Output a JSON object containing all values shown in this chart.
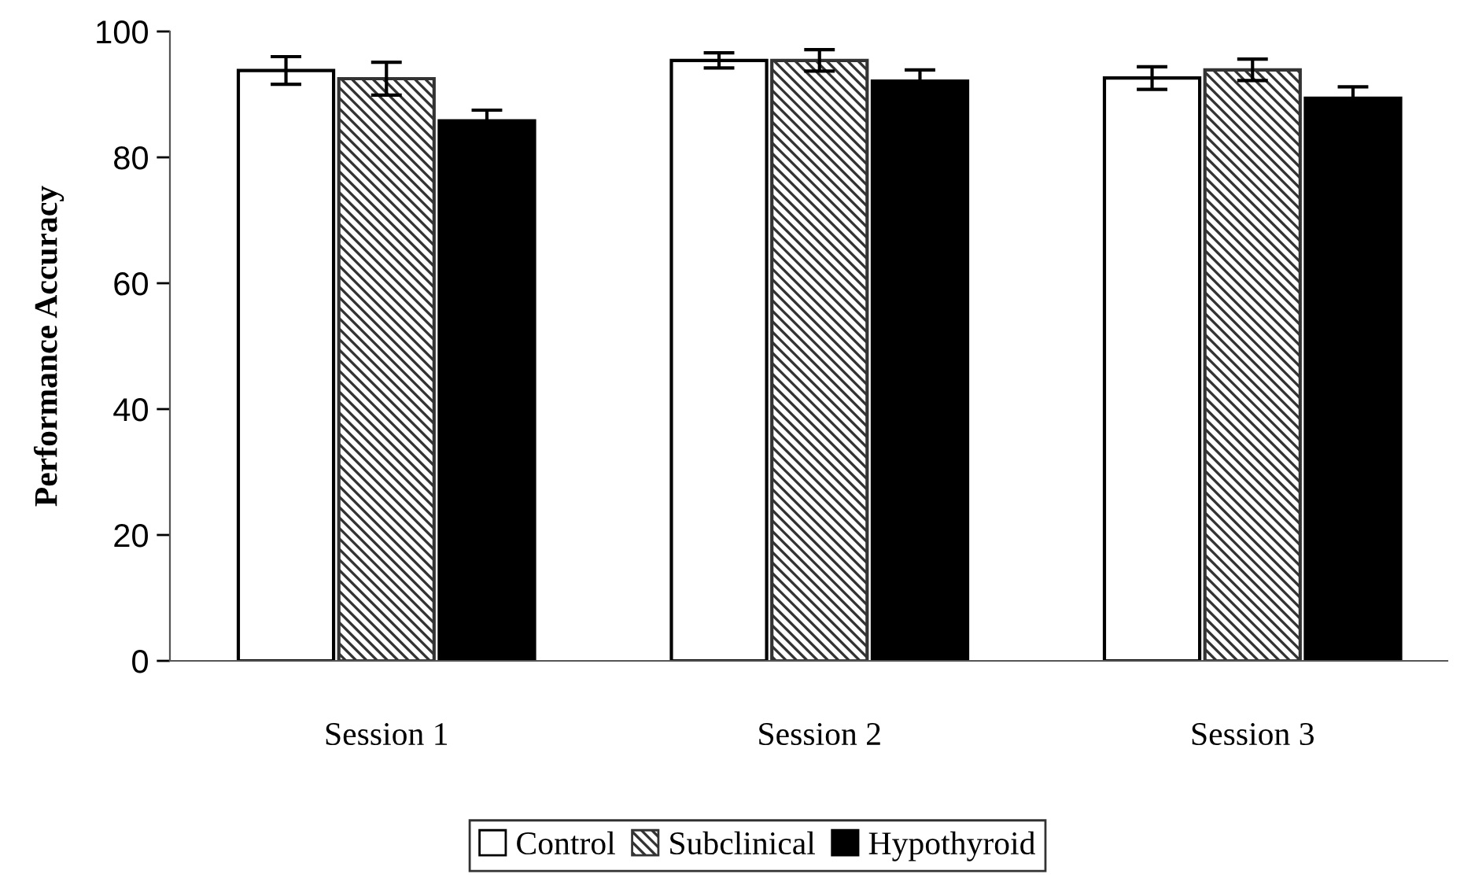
{
  "chart_data": {
    "type": "bar",
    "ylabel": "Performance Accuracy",
    "categories": [
      "Session 1",
      "Session 2",
      "Session 3"
    ],
    "ylim": [
      0,
      100
    ],
    "yticks": [
      0,
      20,
      40,
      60,
      80,
      100
    ],
    "grid": false,
    "legend": "bottom",
    "series": [
      {
        "name": "Control",
        "color": "#ffffff",
        "values": [
          93.8,
          95.4,
          92.6
        ],
        "errors": [
          2.2,
          1.2,
          1.8
        ]
      },
      {
        "name": "Subclinical",
        "color": "#333333",
        "values": [
          92.5,
          95.4,
          93.9
        ],
        "errors": [
          2.6,
          1.7,
          1.7
        ]
      },
      {
        "name": "Hypothyroid",
        "color": "#000000",
        "values": [
          85.8,
          92.1,
          89.4
        ],
        "errors": [
          1.7,
          1.8,
          1.8
        ]
      }
    ]
  }
}
